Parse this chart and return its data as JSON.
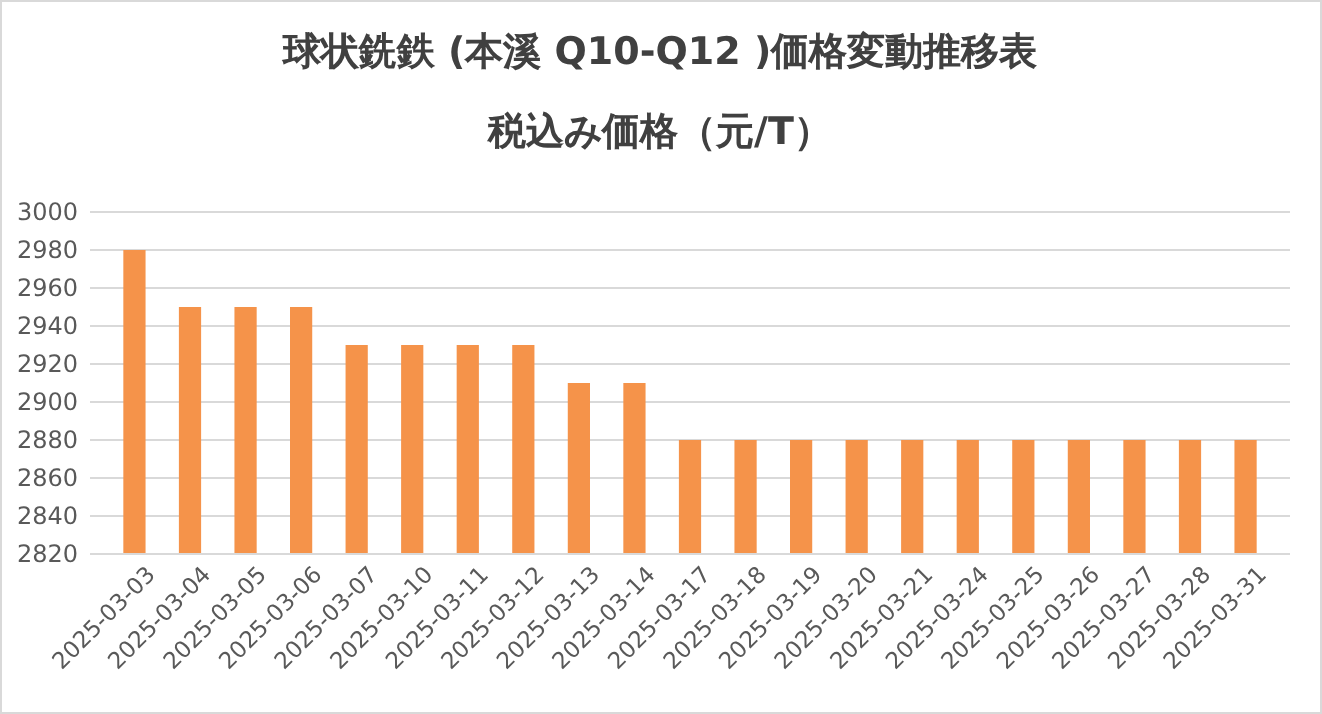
{
  "chart_data": {
    "type": "bar",
    "title": "球状銑鉄 (本溪 Q10-Q12 )価格変動推移表",
    "subtitle": "税込み価格（元/T）",
    "categories": [
      "2025-03-03",
      "2025-03-04",
      "2025-03-05",
      "2025-03-06",
      "2025-03-07",
      "2025-03-10",
      "2025-03-11",
      "2025-03-12",
      "2025-03-13",
      "2025-03-14",
      "2025-03-17",
      "2025-03-18",
      "2025-03-19",
      "2025-03-20",
      "2025-03-21",
      "2025-03-24",
      "2025-03-25",
      "2025-03-26",
      "2025-03-27",
      "2025-03-28",
      "2025-03-31"
    ],
    "values": [
      2980,
      2950,
      2950,
      2950,
      2930,
      2930,
      2930,
      2930,
      2910,
      2910,
      2880,
      2880,
      2880,
      2880,
      2880,
      2880,
      2880,
      2880,
      2880,
      2880,
      2880
    ],
    "color": "#f5934a",
    "ylim": [
      2820,
      3000
    ],
    "yticks": [
      2820,
      2840,
      2860,
      2880,
      2900,
      2920,
      2940,
      2960,
      2980,
      3000
    ],
    "grid": "y"
  }
}
